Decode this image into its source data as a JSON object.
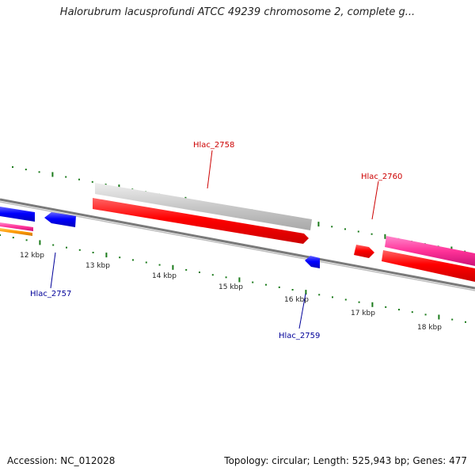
{
  "title": "Halorubrum lacusprofundi ATCC 49239 chromosome 2, complete g...",
  "footer": {
    "accession": "Accession: NC_012028",
    "summary": "Topology: circular; Length: 525,943 bp; Genes: 477"
  },
  "scale_labels": [
    "12 kbp",
    "13 kbp",
    "14 kbp",
    "15 kbp",
    "16 kbp",
    "17 kbp",
    "18 kbp"
  ],
  "gene_labels": [
    "Hlac_2758",
    "Hlac_2760",
    "Hlac_2757",
    "Hlac_2759"
  ],
  "colors": {
    "forward_gene": "#ff0000",
    "reverse_gene": "#0000ff",
    "label_forward": "#cc0000",
    "label_reverse": "#000099",
    "grey_gene": "#c8c8c8",
    "pink_gene": "#ff3399",
    "orange_gene": "#ff9900",
    "tick": "#1a7a1a",
    "backbone": "#808080"
  }
}
